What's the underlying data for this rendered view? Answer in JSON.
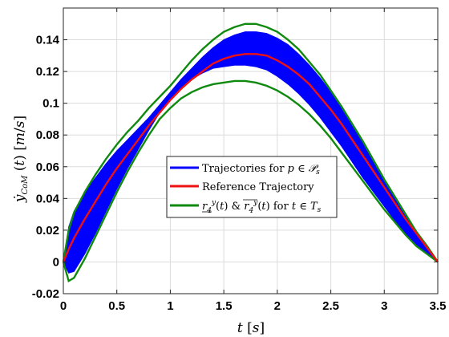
{
  "chart_data": {
    "type": "line",
    "title": "",
    "xlabel": "t [s]",
    "ylabel": "ẏ_CoM (t) [m/s]",
    "xlim": [
      0,
      3.5
    ],
    "ylim": [
      -0.02,
      0.16
    ],
    "xticks": [
      0,
      0.5,
      1,
      1.5,
      2,
      2.5,
      3,
      3.5
    ],
    "xtick_labels": [
      "0",
      "0.5",
      "1",
      "1.5",
      "2",
      "2.5",
      "3",
      "3.5"
    ],
    "yticks": [
      -0.02,
      0,
      0.02,
      0.04,
      0.06,
      0.08,
      0.1,
      0.12,
      0.14
    ],
    "ytick_labels": [
      "-0.02",
      "0",
      "0.02",
      "0.04",
      "0.06",
      "0.08",
      "0.1",
      "0.12",
      "0.14"
    ],
    "grid": true,
    "legend_position": "center",
    "series": [
      {
        "name": "Trajectories for p ∈ 𝒫s",
        "kind": "band",
        "color": "#0000ff",
        "x": [
          0.0,
          0.05,
          0.1,
          0.2,
          0.3,
          0.4,
          0.5,
          0.6,
          0.7,
          0.8,
          0.9,
          1.0,
          1.1,
          1.2,
          1.3,
          1.4,
          1.5,
          1.6,
          1.7,
          1.8,
          1.9,
          2.0,
          2.1,
          2.2,
          2.3,
          2.4,
          2.5,
          2.6,
          2.7,
          2.8,
          2.9,
          3.0,
          3.1,
          3.2,
          3.3,
          3.4,
          3.5
        ],
        "upper": [
          0.0,
          0.022,
          0.032,
          0.044,
          0.053,
          0.062,
          0.07,
          0.077,
          0.084,
          0.091,
          0.099,
          0.107,
          0.115,
          0.122,
          0.129,
          0.135,
          0.14,
          0.143,
          0.145,
          0.145,
          0.144,
          0.141,
          0.137,
          0.131,
          0.124,
          0.116,
          0.107,
          0.097,
          0.086,
          0.075,
          0.063,
          0.051,
          0.04,
          0.029,
          0.019,
          0.01,
          0.0
        ],
        "lower": [
          0.0,
          -0.007,
          -0.006,
          0.005,
          0.018,
          0.032,
          0.046,
          0.059,
          0.071,
          0.083,
          0.094,
          0.103,
          0.11,
          0.115,
          0.119,
          0.122,
          0.123,
          0.124,
          0.124,
          0.123,
          0.121,
          0.117,
          0.112,
          0.106,
          0.099,
          0.091,
          0.082,
          0.073,
          0.063,
          0.053,
          0.044,
          0.035,
          0.026,
          0.018,
          0.011,
          0.005,
          0.0
        ]
      },
      {
        "name": "Reference Trajectory",
        "kind": "line",
        "color": "#ee1111",
        "x": [
          0.0,
          0.05,
          0.1,
          0.2,
          0.3,
          0.4,
          0.5,
          0.6,
          0.7,
          0.8,
          0.9,
          1.0,
          1.1,
          1.2,
          1.3,
          1.4,
          1.5,
          1.6,
          1.7,
          1.8,
          1.9,
          2.0,
          2.1,
          2.2,
          2.3,
          2.4,
          2.5,
          2.6,
          2.7,
          2.8,
          2.9,
          3.0,
          3.1,
          3.2,
          3.3,
          3.4,
          3.5
        ],
        "y": [
          0.0,
          0.008,
          0.015,
          0.027,
          0.038,
          0.049,
          0.059,
          0.068,
          0.077,
          0.086,
          0.094,
          0.102,
          0.109,
          0.115,
          0.12,
          0.125,
          0.128,
          0.13,
          0.131,
          0.131,
          0.13,
          0.127,
          0.123,
          0.118,
          0.112,
          0.104,
          0.096,
          0.087,
          0.077,
          0.067,
          0.057,
          0.047,
          0.037,
          0.027,
          0.018,
          0.009,
          0.0
        ]
      },
      {
        "name": "r4y(t) & r4y(t) for t ∈ Ts",
        "kind": "bounds",
        "color": "#0f8a0f",
        "x": [
          0.0,
          0.05,
          0.1,
          0.2,
          0.3,
          0.4,
          0.5,
          0.6,
          0.7,
          0.8,
          0.9,
          1.0,
          1.1,
          1.2,
          1.3,
          1.4,
          1.5,
          1.6,
          1.7,
          1.8,
          1.9,
          2.0,
          2.1,
          2.2,
          2.3,
          2.4,
          2.5,
          2.6,
          2.7,
          2.8,
          2.9,
          3.0,
          3.1,
          3.2,
          3.3,
          3.4,
          3.5
        ],
        "upper": [
          0.0,
          0.02,
          0.031,
          0.044,
          0.055,
          0.065,
          0.074,
          0.082,
          0.089,
          0.097,
          0.104,
          0.111,
          0.119,
          0.127,
          0.134,
          0.14,
          0.145,
          0.148,
          0.15,
          0.15,
          0.148,
          0.145,
          0.14,
          0.134,
          0.126,
          0.118,
          0.108,
          0.098,
          0.087,
          0.076,
          0.064,
          0.052,
          0.041,
          0.03,
          0.019,
          0.01,
          0.0
        ],
        "lower": [
          0.0,
          -0.012,
          -0.01,
          0.002,
          0.016,
          0.03,
          0.044,
          0.057,
          0.069,
          0.08,
          0.09,
          0.097,
          0.103,
          0.107,
          0.11,
          0.112,
          0.113,
          0.114,
          0.114,
          0.113,
          0.111,
          0.108,
          0.104,
          0.099,
          0.093,
          0.086,
          0.078,
          0.069,
          0.06,
          0.051,
          0.042,
          0.033,
          0.025,
          0.017,
          0.01,
          0.005,
          0.0
        ]
      }
    ]
  }
}
